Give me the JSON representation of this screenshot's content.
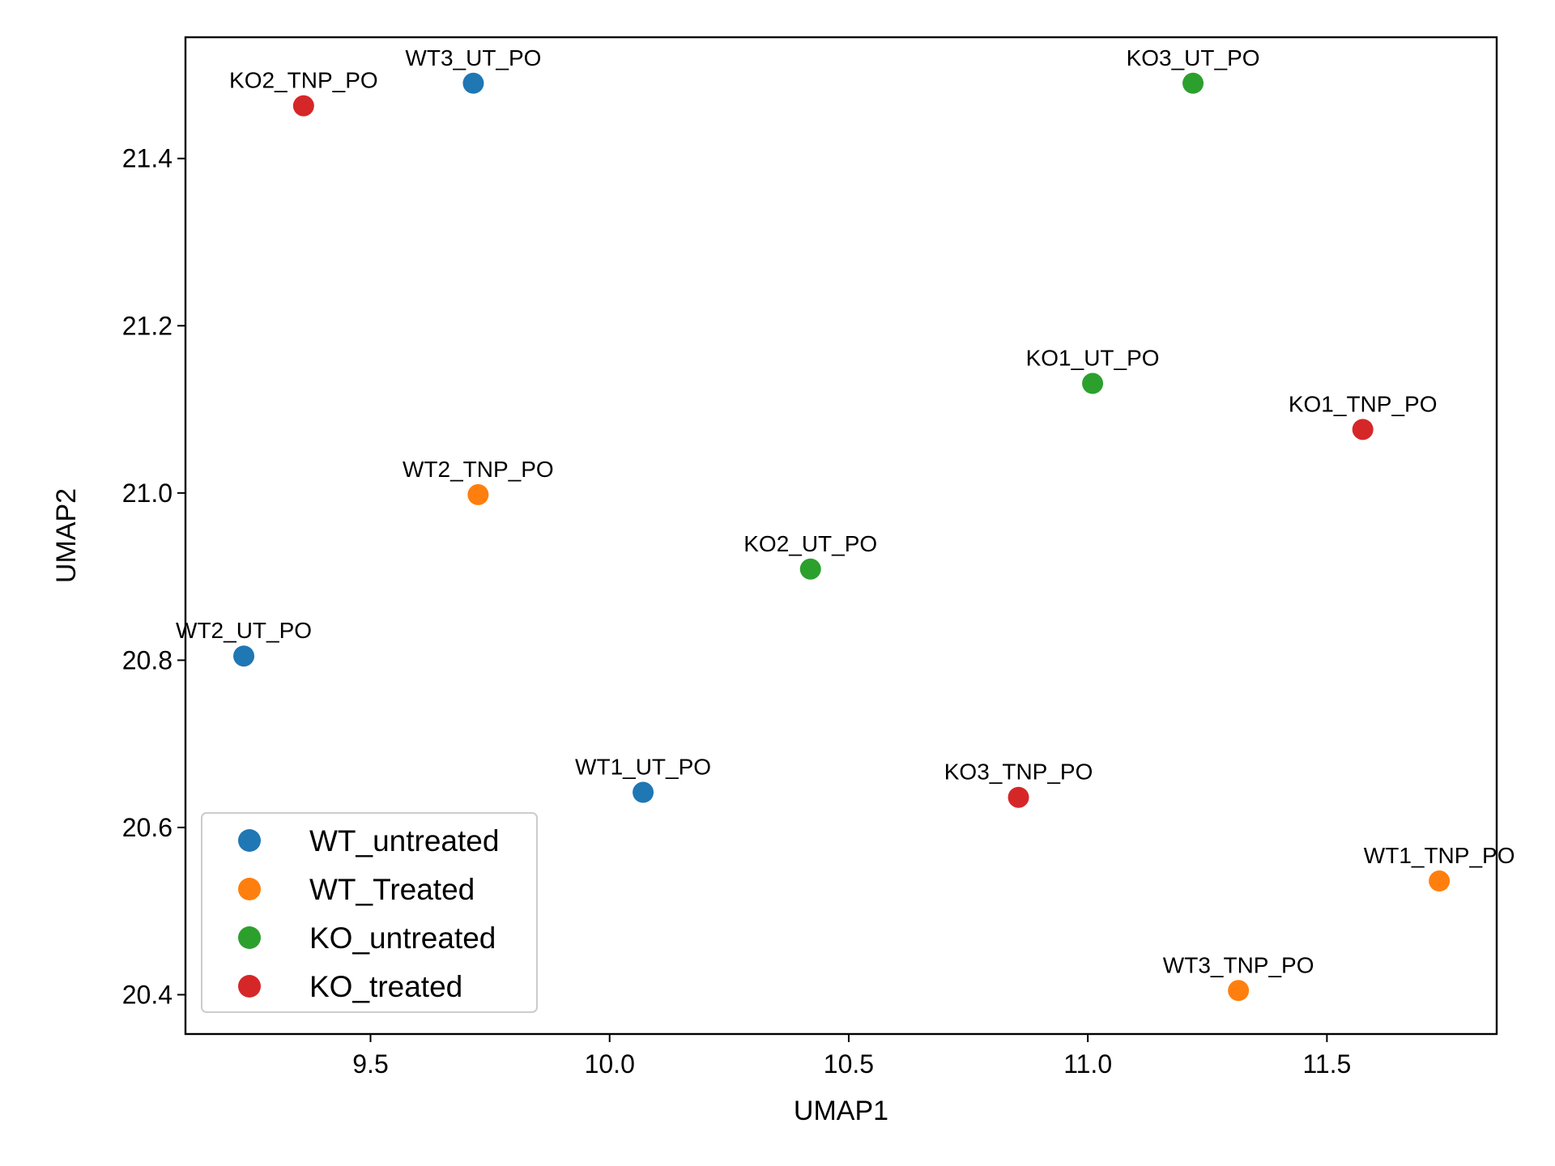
{
  "chart_data": {
    "type": "scatter",
    "title": "",
    "xlabel": "UMAP1",
    "ylabel": "UMAP2",
    "xlim": [
      9.113,
      11.855
    ],
    "ylim": [
      20.353,
      21.545
    ],
    "xticks": [
      9.5,
      10.0,
      10.5,
      11.0,
      11.5
    ],
    "xtick_labels": [
      "9.5",
      "10.0",
      "10.5",
      "11.0",
      "11.5"
    ],
    "yticks": [
      20.4,
      20.6,
      20.8,
      21.0,
      21.2,
      21.4
    ],
    "ytick_labels": [
      "20.4",
      "20.6",
      "20.8",
      "21.0",
      "21.2",
      "21.4"
    ],
    "grid": false,
    "legend_position": "lower-left",
    "series": [
      {
        "name": "WT_untreated",
        "color": "#1f77b4",
        "points": [
          {
            "label": "WT1_UT_PO",
            "x": 10.07,
            "y": 20.642
          },
          {
            "label": "WT2_UT_PO",
            "x": 9.235,
            "y": 20.805
          },
          {
            "label": "WT3_UT_PO",
            "x": 9.715,
            "y": 21.49
          }
        ]
      },
      {
        "name": "WT_Treated",
        "color": "#ff7f0e",
        "points": [
          {
            "label": "WT1_TNP_PO",
            "x": 11.735,
            "y": 20.536
          },
          {
            "label": "WT2_TNP_PO",
            "x": 9.725,
            "y": 20.998
          },
          {
            "label": "WT3_TNP_PO",
            "x": 11.315,
            "y": 20.405
          }
        ]
      },
      {
        "name": "KO_untreated",
        "color": "#2ca02c",
        "points": [
          {
            "label": "KO1_UT_PO",
            "x": 11.01,
            "y": 21.131
          },
          {
            "label": "KO2_UT_PO",
            "x": 10.42,
            "y": 20.909
          },
          {
            "label": "KO3_UT_PO",
            "x": 11.22,
            "y": 21.49
          }
        ]
      },
      {
        "name": "KO_treated",
        "color": "#d62728",
        "points": [
          {
            "label": "KO1_TNP_PO",
            "x": 11.575,
            "y": 21.076
          },
          {
            "label": "KO2_TNP_PO",
            "x": 9.36,
            "y": 21.463
          },
          {
            "label": "KO3_TNP_PO",
            "x": 10.855,
            "y": 20.636
          }
        ]
      }
    ]
  }
}
